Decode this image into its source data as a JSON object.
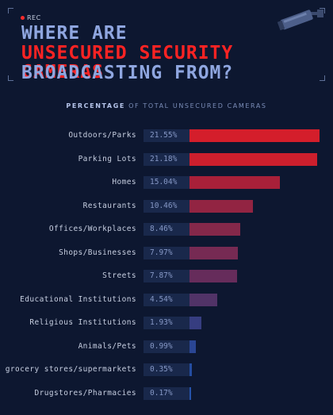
{
  "header": {
    "rec_label": "REC",
    "title_line1": "Where are",
    "title_line2": "unsecured security cameras",
    "title_line3": "broadcasting from?"
  },
  "subtitle": {
    "bold": "Percentage",
    "rest": "of total unsecured cameras"
  },
  "colors": {
    "background": "#0d1730",
    "title_red": "#ff2323",
    "title_blue": "#8fa6e0",
    "bar_colors": [
      "#d41e2b",
      "#cc1f2d",
      "#a82039",
      "#922442",
      "#84284a",
      "#762a53",
      "#662c5b",
      "#513367",
      "#363d80",
      "#2a4694",
      "#244da0",
      "#2553ab"
    ]
  },
  "chart_data": {
    "type": "bar",
    "orientation": "horizontal",
    "title": "Percentage of total unsecured cameras",
    "categories": [
      "Outdoors/Parks",
      "Parking Lots",
      "Homes",
      "Restaurants",
      "Offices/Workplaces",
      "Shops/Businesses",
      "Streets",
      "Educational Institutions",
      "Religious Institutions",
      "Animals/Pets",
      "grocery stores/supermarkets",
      "Drugstores/Pharmacies"
    ],
    "values": [
      21.55,
      21.18,
      15.04,
      10.46,
      8.46,
      7.97,
      7.87,
      4.54,
      1.93,
      0.99,
      0.35,
      0.17
    ],
    "labels": [
      "21.55%",
      "21.18%",
      "15.04%",
      "10.46%",
      "8.46%",
      "7.97%",
      "7.87%",
      "4.54%",
      "1.93%",
      "0.99%",
      "0.35%",
      "0.17%"
    ],
    "xlim": [
      0,
      21.55
    ]
  }
}
